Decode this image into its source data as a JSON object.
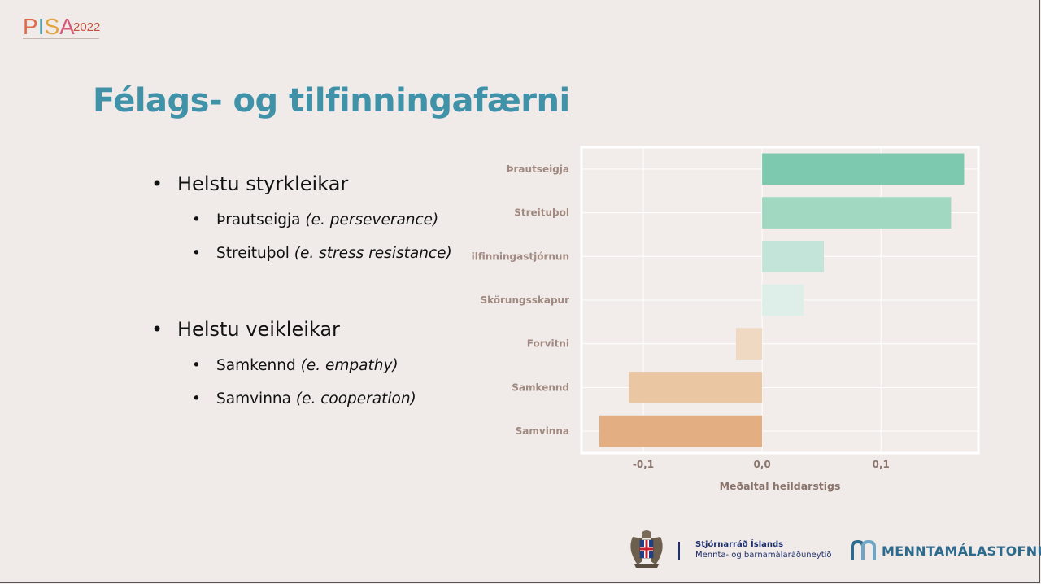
{
  "logo": {
    "pisa": "PISA",
    "year": "2022"
  },
  "title": "Félags- og tilfinningafærni",
  "bullets": [
    {
      "label": "Helstu styrkleikar",
      "items": [
        {
          "main": "Þrautseigja",
          "note": "(e. perseverance)"
        },
        {
          "main": "Streituþol",
          "note": "(e. stress resistance)"
        }
      ]
    },
    {
      "label": "Helstu veikleikar",
      "items": [
        {
          "main": "Samkennd",
          "note": "(e. empathy)"
        },
        {
          "main": "Samvinna",
          "note": "(e. cooperation)"
        }
      ]
    }
  ],
  "chart_data": {
    "type": "bar",
    "orientation": "horizontal",
    "categories": [
      "Þrautseigja",
      "Streituþol",
      "Tilfinningastjórnun",
      "Skörungsskapur",
      "Forvitni",
      "Samkennd",
      "Samvinna"
    ],
    "values": [
      0.17,
      0.159,
      0.052,
      0.035,
      -0.022,
      -0.112,
      -0.137
    ],
    "colors": [
      "#7cc9b0",
      "#a0d8c2",
      "#c3e4d8",
      "#ddefe8",
      "#f0d9c2",
      "#eac6a2",
      "#e3ae82"
    ],
    "xlabel": "Meðaltal heildarstigs",
    "xticks": [
      {
        "v": -0.1,
        "label": "-0,1"
      },
      {
        "v": 0.0,
        "label": "0,0"
      },
      {
        "v": 0.1,
        "label": "0,1"
      }
    ],
    "xlim": [
      -0.152,
      0.182
    ],
    "grid": true
  },
  "footer": {
    "gov_name": "Stjórnarráð Íslands",
    "gov_ministry": "Mennta- og barnamálaráðuneytið",
    "agency": "MENNTAMÁLASTOFNUN"
  }
}
